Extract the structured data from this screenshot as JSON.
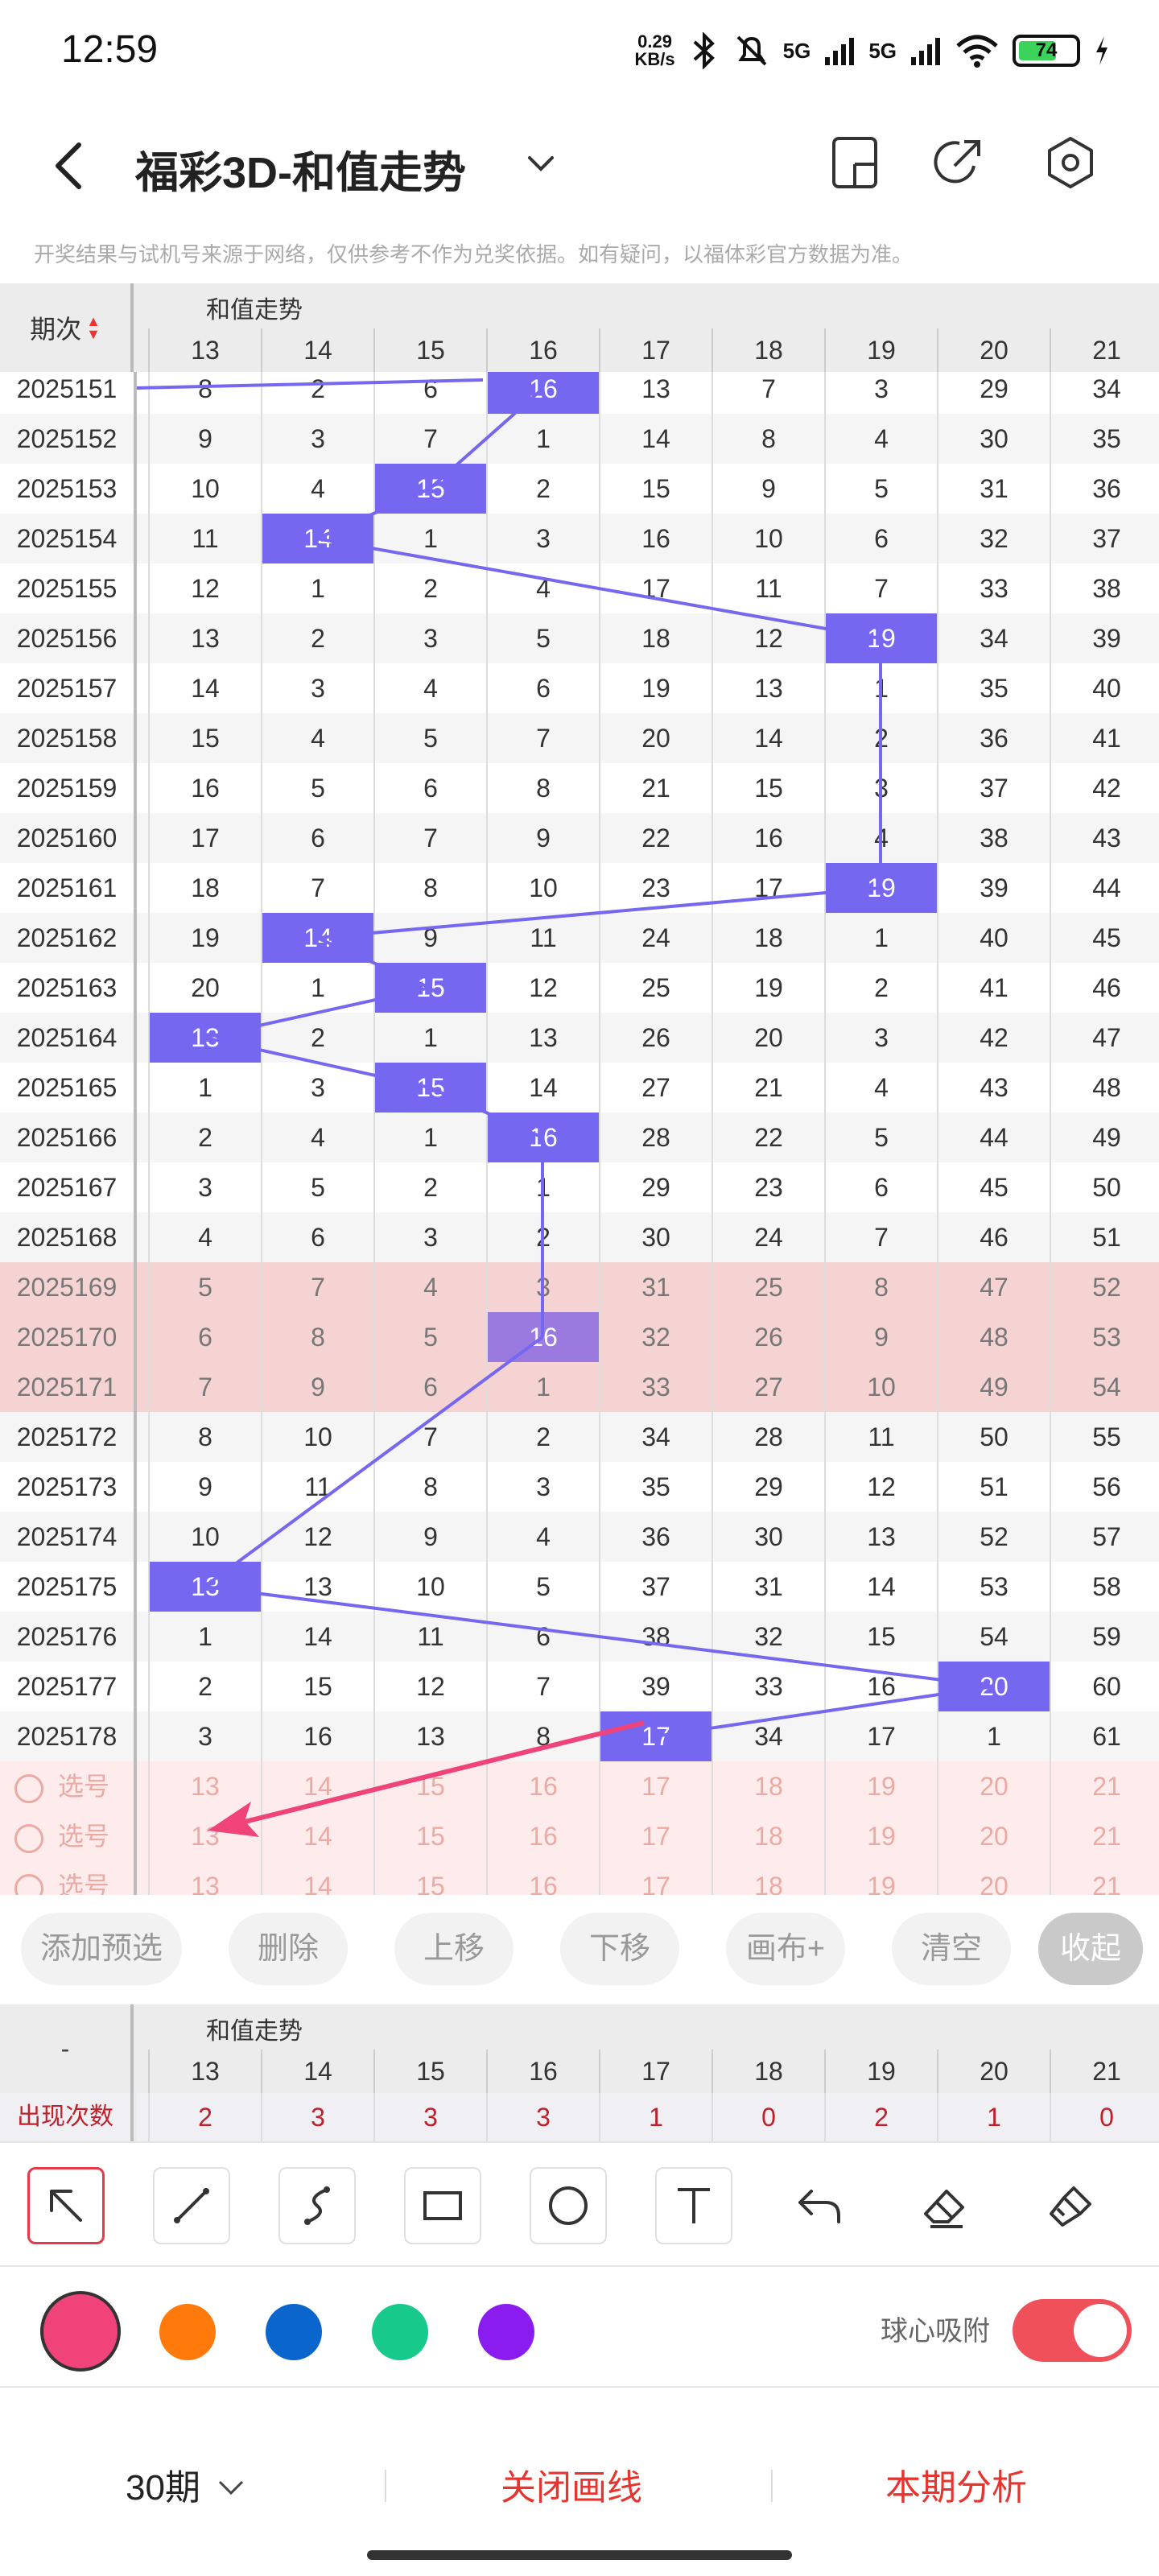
{
  "status_bar": {
    "time": "12:59",
    "net_speed_value": "0.29",
    "net_speed_unit": "KB/s",
    "signal_label_1": "5G",
    "signal_label_2": "5G",
    "battery": "74"
  },
  "header": {
    "title": "福彩3D-和值走势",
    "icons": [
      "back-icon",
      "chevron-down-icon",
      "phone-split-icon",
      "share-icon",
      "settings-icon"
    ]
  },
  "notice": "开奖结果与试机号来源于网络，仅供参考不作为兑奖依据。如有疑问，以福体彩官方数据为准。",
  "table": {
    "period_header": "期次",
    "group_header": "和值走势",
    "columns": [
      "13",
      "14",
      "15",
      "16",
      "17",
      "18",
      "19",
      "20",
      "21"
    ],
    "rows": [
      {
        "period": "2025151",
        "cells": [
          "8",
          "2",
          "6",
          "16",
          "13",
          "7",
          "3",
          "29",
          "34"
        ],
        "hit": 3
      },
      {
        "period": "2025152",
        "cells": [
          "9",
          "3",
          "7",
          "1",
          "14",
          "8",
          "4",
          "30",
          "35"
        ],
        "hit": -1
      },
      {
        "period": "2025153",
        "cells": [
          "10",
          "4",
          "15",
          "2",
          "15",
          "9",
          "5",
          "31",
          "36"
        ],
        "hit": 2
      },
      {
        "period": "2025154",
        "cells": [
          "11",
          "14",
          "1",
          "3",
          "16",
          "10",
          "6",
          "32",
          "37"
        ],
        "hit": 1
      },
      {
        "period": "2025155",
        "cells": [
          "12",
          "1",
          "2",
          "4",
          "17",
          "11",
          "7",
          "33",
          "38"
        ],
        "hit": -1
      },
      {
        "period": "2025156",
        "cells": [
          "13",
          "2",
          "3",
          "5",
          "18",
          "12",
          "19",
          "34",
          "39"
        ],
        "hit": 6
      },
      {
        "period": "2025157",
        "cells": [
          "14",
          "3",
          "4",
          "6",
          "19",
          "13",
          "1",
          "35",
          "40"
        ],
        "hit": -1
      },
      {
        "period": "2025158",
        "cells": [
          "15",
          "4",
          "5",
          "7",
          "20",
          "14",
          "2",
          "36",
          "41"
        ],
        "hit": -1
      },
      {
        "period": "2025159",
        "cells": [
          "16",
          "5",
          "6",
          "8",
          "21",
          "15",
          "3",
          "37",
          "42"
        ],
        "hit": -1
      },
      {
        "period": "2025160",
        "cells": [
          "17",
          "6",
          "7",
          "9",
          "22",
          "16",
          "4",
          "38",
          "43"
        ],
        "hit": -1
      },
      {
        "period": "2025161",
        "cells": [
          "18",
          "7",
          "8",
          "10",
          "23",
          "17",
          "19",
          "39",
          "44"
        ],
        "hit": 6
      },
      {
        "period": "2025162",
        "cells": [
          "19",
          "14",
          "9",
          "11",
          "24",
          "18",
          "1",
          "40",
          "45"
        ],
        "hit": 1
      },
      {
        "period": "2025163",
        "cells": [
          "20",
          "1",
          "15",
          "12",
          "25",
          "19",
          "2",
          "41",
          "46"
        ],
        "hit": 2
      },
      {
        "period": "2025164",
        "cells": [
          "13",
          "2",
          "1",
          "13",
          "26",
          "20",
          "3",
          "42",
          "47"
        ],
        "hit": 0
      },
      {
        "period": "2025165",
        "cells": [
          "1",
          "3",
          "15",
          "14",
          "27",
          "21",
          "4",
          "43",
          "48"
        ],
        "hit": 2
      },
      {
        "period": "2025166",
        "cells": [
          "2",
          "4",
          "1",
          "16",
          "28",
          "22",
          "5",
          "44",
          "49"
        ],
        "hit": 3
      },
      {
        "period": "2025167",
        "cells": [
          "3",
          "5",
          "2",
          "1",
          "29",
          "23",
          "6",
          "45",
          "50"
        ],
        "hit": -1
      },
      {
        "period": "2025168",
        "cells": [
          "4",
          "6",
          "3",
          "2",
          "30",
          "24",
          "7",
          "46",
          "51"
        ],
        "hit": -1
      },
      {
        "period": "2025169",
        "cells": [
          "5",
          "7",
          "4",
          "3",
          "31",
          "25",
          "8",
          "47",
          "52"
        ],
        "hit": -1
      },
      {
        "period": "2025170",
        "cells": [
          "6",
          "8",
          "5",
          "16",
          "32",
          "26",
          "9",
          "48",
          "53"
        ],
        "hit": 3
      },
      {
        "period": "2025171",
        "cells": [
          "7",
          "9",
          "6",
          "1",
          "33",
          "27",
          "10",
          "49",
          "54"
        ],
        "hit": -1
      },
      {
        "period": "2025172",
        "cells": [
          "8",
          "10",
          "7",
          "2",
          "34",
          "28",
          "11",
          "50",
          "55"
        ],
        "hit": -1
      },
      {
        "period": "2025173",
        "cells": [
          "9",
          "11",
          "8",
          "3",
          "35",
          "29",
          "12",
          "51",
          "56"
        ],
        "hit": -1
      },
      {
        "period": "2025174",
        "cells": [
          "10",
          "12",
          "9",
          "4",
          "36",
          "30",
          "13",
          "52",
          "57"
        ],
        "hit": -1
      },
      {
        "period": "2025175",
        "cells": [
          "13",
          "13",
          "10",
          "5",
          "37",
          "31",
          "14",
          "53",
          "58"
        ],
        "hit": 0
      },
      {
        "period": "2025176",
        "cells": [
          "1",
          "14",
          "11",
          "6",
          "38",
          "32",
          "15",
          "54",
          "59"
        ],
        "hit": -1
      },
      {
        "period": "2025177",
        "cells": [
          "2",
          "15",
          "12",
          "7",
          "39",
          "33",
          "16",
          "20",
          "60"
        ],
        "hit": 7
      },
      {
        "period": "2025178",
        "cells": [
          "3",
          "16",
          "13",
          "8",
          "17",
          "34",
          "17",
          "1",
          "61"
        ],
        "hit": 4
      }
    ],
    "highlight_rows": [
      "2025169",
      "2025170",
      "2025171"
    ],
    "pick_rows": [
      {
        "label": "选号",
        "cells": [
          "13",
          "14",
          "15",
          "16",
          "17",
          "18",
          "19",
          "20",
          "21"
        ]
      },
      {
        "label": "选号",
        "cells": [
          "13",
          "14",
          "15",
          "16",
          "17",
          "18",
          "19",
          "20",
          "21"
        ]
      },
      {
        "label": "选号",
        "cells": [
          "13",
          "14",
          "15",
          "16",
          "17",
          "18",
          "19",
          "20",
          "21"
        ]
      }
    ],
    "line_color": "#7567f0",
    "arrow_color": "#f0437a"
  },
  "actions": {
    "add": "添加预选",
    "delete": "删除",
    "up": "上移",
    "down": "下移",
    "canvas": "画布+",
    "clear": "清空",
    "collapse": "收起"
  },
  "summary": {
    "dash": "-",
    "group_header": "和值走势",
    "row_label": "出现次数",
    "counts": [
      "2",
      "3",
      "3",
      "3",
      "1",
      "0",
      "2",
      "1",
      "0"
    ]
  },
  "tools": [
    "arrow-tool-icon",
    "line-tool-icon",
    "curve-tool-icon",
    "rect-tool-icon",
    "circle-tool-icon",
    "text-tool-icon",
    "undo-icon",
    "eraser-icon",
    "clear-brush-icon"
  ],
  "palette": {
    "colors": [
      "#f0437a",
      "#ff7a0a",
      "#0a66cc",
      "#17c98a",
      "#8a1cf0"
    ],
    "selected": "#f0437a",
    "snap_label": "球心吸附",
    "snap_on": true
  },
  "bottom": {
    "periods": "30期",
    "close_lines": "关闭画线",
    "analysis": "本期分析"
  }
}
